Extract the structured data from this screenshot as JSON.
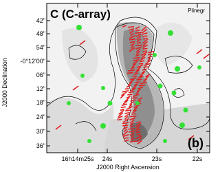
{
  "panel": {
    "title": "C (C-array)",
    "corner_label": "Plinegr",
    "panel_label": "(b)"
  },
  "axes": {
    "y_label": "J2000 Declination",
    "x_label": "J2000 Right Ascension",
    "y_ticks": [
      "42\"",
      "48\"",
      "54\"",
      "-0°12'00\"",
      "06\"",
      "12\"",
      "18\"",
      "24\"",
      "30\"",
      "36\""
    ],
    "x_ticks": [
      "16h14m25s",
      "24s",
      "23s",
      "22s"
    ]
  }
}
